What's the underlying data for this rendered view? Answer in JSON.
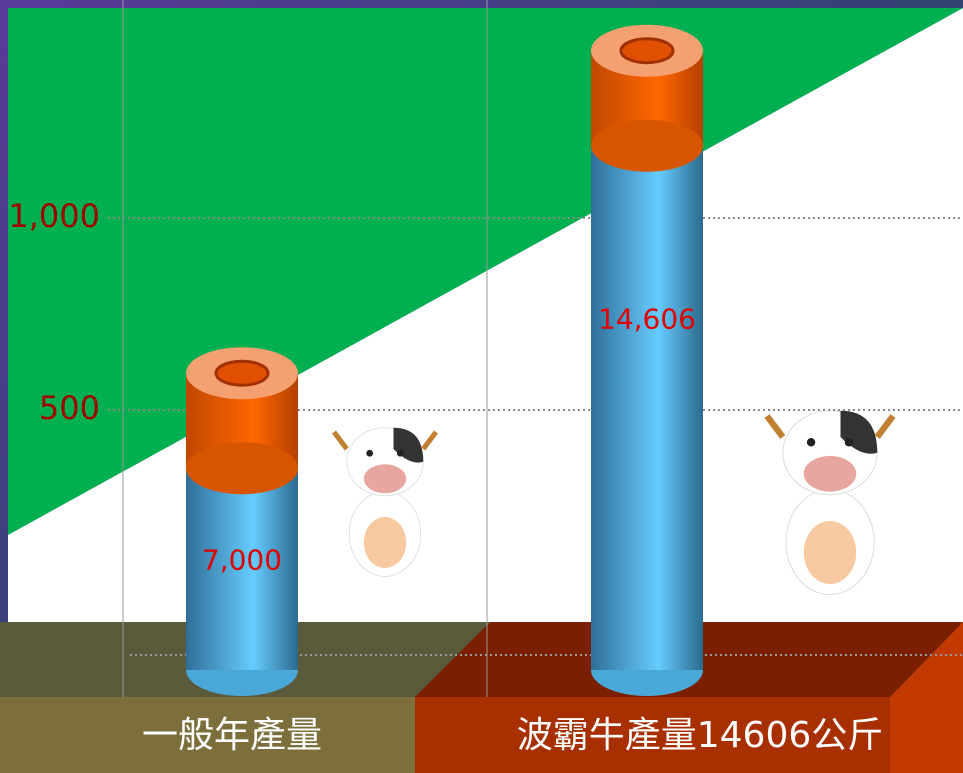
{
  "chart_data": {
    "type": "cylinder-bar",
    "categories": [
      "一般年產量",
      "波霸牛產量14606公斤"
    ],
    "series": [
      {
        "color": "#5ec8f8",
        "cap_color": "#ff6600",
        "axis": "y2",
        "values": [
          7000,
          14606
        ],
        "value_labels": [
          "7,000",
          "14,606"
        ]
      }
    ],
    "ylim": [
      -177,
      1479
    ],
    "yticks": [
      500,
      {
        "value": 1000,
        "label": "1,000"
      }
    ],
    "y2lim": [
      0,
      15000
    ],
    "grid": true
  }
}
